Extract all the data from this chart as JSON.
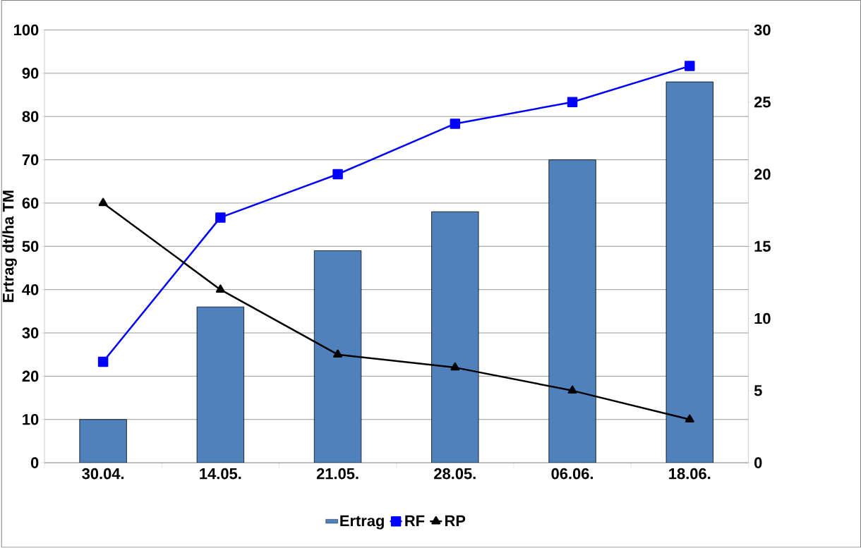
{
  "chart_data": {
    "type": "bar",
    "ylabel": "Ertrag dt/ha TM",
    "categories": [
      "30.04.",
      "14.05.",
      "21.05.",
      "28.05.",
      "06.06.",
      "18.06."
    ],
    "series": [
      {
        "name": "Ertrag",
        "color": "#4f81bd",
        "values": [
          10,
          36,
          49,
          58,
          70,
          88
        ]
      },
      {
        "name": "RF",
        "type": "line",
        "axis": "y2",
        "color": "#0000ff",
        "marker": "square",
        "values": [
          7,
          17,
          20,
          23.5,
          25,
          27.5
        ]
      },
      {
        "name": "RP",
        "type": "line",
        "axis": "y2",
        "color": "#000000",
        "marker": "triangle",
        "values": [
          18,
          12,
          7.5,
          6.6,
          5,
          3
        ]
      }
    ],
    "ylim": [
      0,
      100
    ],
    "yticks": [
      0,
      10,
      20,
      30,
      40,
      50,
      60,
      70,
      80,
      90,
      100
    ],
    "y2lim": [
      0,
      30
    ],
    "y2ticks": [
      0,
      5,
      10,
      15,
      20,
      25,
      30
    ],
    "grid": "y",
    "legend": "bottom"
  }
}
